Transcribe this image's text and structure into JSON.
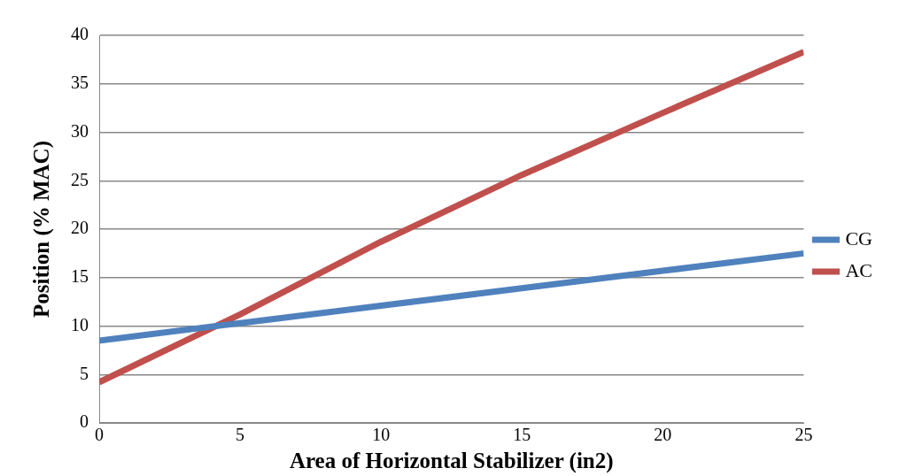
{
  "chart_data": {
    "type": "line",
    "xlabel": "Area of Horizontal Stabilizer (in2)",
    "ylabel": "Position (% MAC)",
    "x": [
      0,
      5,
      10,
      15,
      20,
      25
    ],
    "series": [
      {
        "name": "CG",
        "color": "#4f81bd",
        "values": [
          8.5,
          10.3,
          12.1,
          13.9,
          15.7,
          17.5
        ]
      },
      {
        "name": "AC",
        "color": "#c0504d",
        "values": [
          4.2,
          11.2,
          18.7,
          25.6,
          32.0,
          38.3
        ]
      }
    ],
    "xlim": [
      0,
      25
    ],
    "xticks": [
      0,
      5,
      10,
      15,
      20,
      25
    ],
    "ylim": [
      0,
      40
    ],
    "yticks": [
      0,
      5,
      10,
      15,
      20,
      25,
      30,
      35,
      40
    ],
    "grid": "y",
    "legend": "right",
    "marker": "none",
    "line_style": "solid"
  }
}
